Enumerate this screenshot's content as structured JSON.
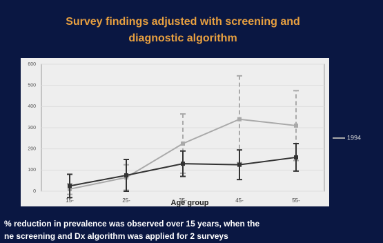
{
  "chart_data": {
    "type": "line",
    "title": [
      "Survey findings adjusted with screening and",
      "diagnostic algorithm"
    ],
    "x_label": "Age group",
    "categories": [
      "15-",
      "25-",
      "35-",
      "45-",
      "55-"
    ],
    "series": [
      {
        "name": "1994",
        "color": "#a9a9a9",
        "values": [
          10,
          65,
          225,
          340,
          310
        ],
        "errors": [
          25,
          60,
          140,
          205,
          165
        ],
        "dashed": true
      },
      {
        "color": "#333333",
        "values": [
          25,
          75,
          130,
          125,
          160
        ],
        "errors": [
          55,
          75,
          60,
          70,
          65
        ],
        "dashed": false
      }
    ],
    "ylim": [
      0,
      600
    ],
    "yticks": [
      0,
      100,
      200,
      300,
      400,
      500,
      600
    ],
    "footnote": [
      "% reduction in prevalence was observed over 15 years, when the",
      "ne screening and Dx algorithm was applied for 2 surveys"
    ]
  }
}
